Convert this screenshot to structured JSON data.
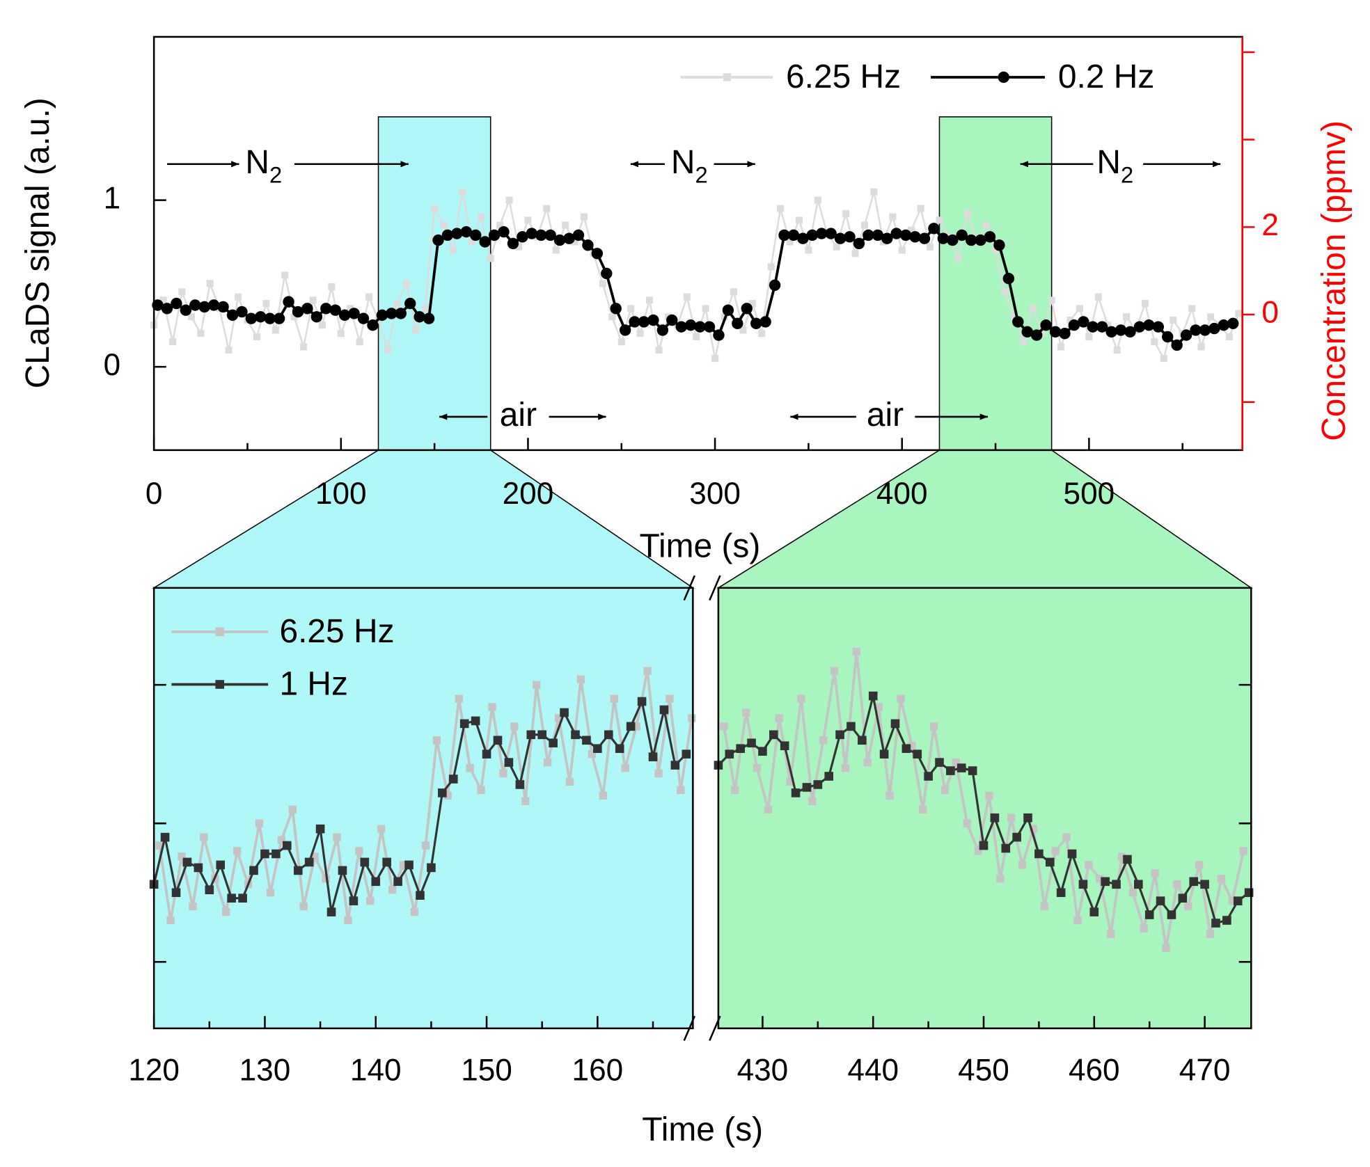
{
  "chart_data": [
    {
      "type": "line",
      "xlabel": "Time (s)",
      "ylabel": "CLaDS signal (a.u.)",
      "y2label": "Concentration (ppmv)",
      "y2color": "#ff0000",
      "xlim": [
        0,
        582
      ],
      "xticks": [
        0,
        100,
        200,
        300,
        400,
        500
      ],
      "xminor_ticks": [
        50,
        150,
        250,
        350,
        450,
        550
      ],
      "ylim": [
        -0.5,
        1.98
      ],
      "yticks": [
        0,
        1
      ],
      "y2lim": [
        -3.1,
        6.35
      ],
      "y2ticks": [
        0,
        2
      ],
      "y2minor_ticks": [
        -2,
        4,
        6
      ],
      "highlights": [
        {
          "xlim": [
            120,
            180
          ],
          "ylim": [
            -0.5,
            1.5
          ],
          "color": "#b0f8f8"
        },
        {
          "xlim": [
            420,
            480
          ],
          "ylim": [
            -0.5,
            1.5
          ],
          "color": "#a8f5bf"
        }
      ],
      "annotations": [
        {
          "text": "N",
          "subscript": "2"
        },
        {
          "text": "N",
          "subscript": "2"
        },
        {
          "text": "N",
          "subscript": "2"
        },
        {
          "text": "air"
        },
        {
          "text": "air"
        }
      ],
      "series": [
        {
          "name": "6.25 Hz",
          "color": "#dcdcdc",
          "marker": "square",
          "x": [
            0,
            5,
            10,
            15,
            20,
            25,
            30,
            35,
            40,
            45,
            50,
            55,
            60,
            65,
            70,
            75,
            80,
            85,
            90,
            95,
            100,
            105,
            110,
            115,
            120,
            125,
            130,
            135,
            140,
            145,
            150,
            155,
            160,
            165,
            170,
            175,
            180,
            185,
            190,
            195,
            200,
            205,
            210,
            215,
            220,
            225,
            230,
            235,
            240,
            245,
            250,
            255,
            260,
            265,
            270,
            275,
            280,
            285,
            290,
            295,
            300,
            305,
            310,
            315,
            320,
            325,
            330,
            335,
            340,
            345,
            350,
            355,
            360,
            365,
            370,
            375,
            380,
            385,
            390,
            395,
            400,
            405,
            410,
            415,
            420,
            425,
            430,
            435,
            440,
            445,
            450,
            455,
            460,
            465,
            470,
            475,
            480,
            485,
            490,
            495,
            500,
            505,
            510,
            515,
            520,
            525,
            530,
            535,
            540,
            545,
            550,
            555,
            560,
            565,
            570,
            575,
            580
          ],
          "values": [
            0.25,
            0.4,
            0.15,
            0.45,
            0.3,
            0.2,
            0.5,
            0.35,
            0.1,
            0.42,
            0.28,
            0.18,
            0.38,
            0.22,
            0.55,
            0.3,
            0.12,
            0.4,
            0.25,
            0.48,
            0.2,
            0.35,
            0.15,
            0.42,
            0.28,
            0.1,
            0.38,
            0.5,
            0.22,
            0.35,
            0.95,
            0.85,
            0.7,
            1.05,
            0.75,
            0.9,
            0.65,
            0.85,
            1.0,
            0.72,
            0.88,
            0.78,
            0.95,
            0.7,
            0.85,
            0.75,
            0.9,
            0.68,
            0.5,
            0.3,
            0.15,
            0.35,
            0.2,
            0.4,
            0.1,
            0.3,
            0.25,
            0.42,
            0.18,
            0.35,
            0.05,
            0.3,
            0.45,
            0.22,
            0.38,
            0.2,
            0.6,
            0.95,
            0.75,
            0.88,
            0.7,
            1.0,
            0.8,
            0.72,
            0.92,
            0.68,
            0.85,
            1.05,
            0.75,
            0.9,
            0.7,
            0.82,
            0.95,
            0.72,
            0.88,
            0.78,
            0.65,
            0.92,
            0.75,
            0.85,
            0.7,
            0.45,
            0.3,
            0.15,
            0.35,
            0.2,
            0.4,
            0.12,
            0.28,
            0.35,
            0.18,
            0.42,
            0.25,
            0.1,
            0.3,
            0.22,
            0.38,
            0.15,
            0.05,
            0.28,
            0.2,
            0.35,
            0.12,
            0.3,
            0.25,
            0.18,
            0.32
          ]
        },
        {
          "name": "0.2 Hz",
          "color": "#000000",
          "marker": "circle",
          "x": [
            2,
            7,
            12,
            17,
            22,
            27,
            32,
            37,
            42,
            47,
            52,
            57,
            62,
            67,
            72,
            77,
            82,
            87,
            92,
            97,
            102,
            107,
            112,
            117,
            122,
            127,
            132,
            137,
            142,
            147,
            152,
            157,
            162,
            167,
            172,
            177,
            182,
            187,
            192,
            197,
            202,
            207,
            212,
            217,
            222,
            227,
            232,
            237,
            242,
            247,
            252,
            257,
            262,
            267,
            272,
            277,
            282,
            287,
            292,
            297,
            302,
            307,
            312,
            317,
            322,
            327,
            332,
            337,
            342,
            347,
            352,
            357,
            362,
            367,
            372,
            377,
            382,
            387,
            392,
            397,
            402,
            407,
            412,
            417,
            422,
            427,
            432,
            437,
            442,
            447,
            452,
            457,
            462,
            467,
            472,
            477,
            482,
            487,
            492,
            497,
            502,
            507,
            512,
            517,
            522,
            527,
            532,
            537,
            542,
            547,
            552,
            557,
            562,
            567,
            572,
            577
          ],
          "values": [
            0.37,
            0.35,
            0.38,
            0.34,
            0.37,
            0.36,
            0.37,
            0.36,
            0.31,
            0.33,
            0.29,
            0.3,
            0.29,
            0.29,
            0.39,
            0.33,
            0.35,
            0.3,
            0.35,
            0.34,
            0.31,
            0.32,
            0.29,
            0.25,
            0.31,
            0.32,
            0.32,
            0.38,
            0.3,
            0.29,
            0.76,
            0.79,
            0.8,
            0.81,
            0.79,
            0.75,
            0.79,
            0.81,
            0.74,
            0.78,
            0.8,
            0.79,
            0.79,
            0.76,
            0.77,
            0.79,
            0.73,
            0.68,
            0.56,
            0.35,
            0.22,
            0.27,
            0.27,
            0.28,
            0.22,
            0.28,
            0.24,
            0.25,
            0.24,
            0.24,
            0.19,
            0.34,
            0.26,
            0.35,
            0.26,
            0.27,
            0.49,
            0.79,
            0.79,
            0.77,
            0.79,
            0.8,
            0.8,
            0.77,
            0.78,
            0.74,
            0.79,
            0.79,
            0.77,
            0.8,
            0.79,
            0.78,
            0.77,
            0.83,
            0.77,
            0.76,
            0.79,
            0.76,
            0.76,
            0.78,
            0.73,
            0.53,
            0.27,
            0.21,
            0.19,
            0.25,
            0.21,
            0.2,
            0.25,
            0.27,
            0.24,
            0.24,
            0.21,
            0.22,
            0.21,
            0.24,
            0.25,
            0.24,
            0.18,
            0.13,
            0.19,
            0.22,
            0.22,
            0.23,
            0.25,
            0.26
          ]
        }
      ]
    },
    {
      "type": "line",
      "xlabel": "Time (s)",
      "xlim": [
        [
          120,
          168.6
        ],
        [
          426,
          474.2
        ]
      ],
      "xticks": [
        120,
        130,
        140,
        150,
        160,
        430,
        440,
        450,
        460,
        470
      ],
      "xminor_ticks": [
        125,
        135,
        145,
        155,
        165,
        435,
        445,
        455,
        465
      ],
      "ylim": [
        -0.24,
        1.35
      ],
      "yminor_ticks": [
        0,
        0.5,
        1
      ],
      "segment_colors": [
        "#b0f8f8",
        "#a8f5bf"
      ],
      "series": [
        {
          "name": "6.25 Hz",
          "color": "#c4c4c4",
          "marker": "square",
          "x": [
            120.5,
            121.5,
            122.5,
            123.5,
            124.5,
            125.5,
            126.5,
            127.5,
            128.5,
            129.5,
            130.5,
            131.5,
            132.5,
            133.5,
            134.5,
            135.5,
            136.5,
            137.5,
            138.5,
            139.5,
            140.5,
            141.5,
            142.5,
            143.5,
            144.5,
            145.5,
            146.5,
            147.5,
            148.5,
            149.5,
            150.5,
            151.5,
            152.5,
            153.5,
            154.5,
            155.5,
            156.5,
            157.5,
            158.5,
            159.5,
            160.5,
            161.5,
            162.5,
            163.5,
            164.5,
            165.5,
            166.5,
            167.5,
            168.5,
            426.5,
            427.5,
            428.5,
            429.5,
            430.5,
            431.5,
            432.5,
            433.5,
            434.5,
            435.5,
            436.5,
            437.5,
            438.5,
            439.5,
            440.5,
            441.5,
            442.5,
            443.5,
            444.5,
            445.5,
            446.5,
            447.5,
            448.5,
            449.5,
            450.5,
            451.5,
            452.5,
            453.5,
            454.5,
            455.5,
            456.5,
            457.5,
            458.5,
            459.5,
            460.5,
            461.5,
            462.5,
            463.5,
            464.5,
            465.5,
            466.5,
            467.5,
            468.5,
            469.5,
            470.5,
            471.5,
            472.5,
            473.5
          ],
          "values": [
            0.42,
            0.15,
            0.38,
            0.2,
            0.45,
            0.3,
            0.18,
            0.4,
            0.28,
            0.5,
            0.25,
            0.44,
            0.55,
            0.2,
            0.38,
            0.3,
            0.45,
            0.15,
            0.4,
            0.22,
            0.48,
            0.26,
            0.35,
            0.18,
            0.42,
            0.8,
            0.6,
            0.95,
            0.7,
            0.62,
            0.92,
            0.68,
            0.85,
            0.58,
            1.0,
            0.72,
            0.88,
            0.65,
            1.02,
            0.75,
            0.6,
            0.95,
            0.7,
            0.85,
            1.05,
            0.68,
            0.95,
            0.62,
            0.88,
            0.85,
            0.62,
            0.9,
            0.7,
            0.55,
            0.88,
            0.65,
            0.95,
            0.58,
            0.8,
            1.05,
            0.7,
            1.12,
            0.72,
            0.92,
            0.6,
            0.95,
            0.78,
            0.55,
            0.85,
            0.62,
            0.72,
            0.5,
            0.4,
            0.6,
            0.3,
            0.52,
            0.35,
            0.48,
            0.2,
            0.4,
            0.45,
            0.15,
            0.35,
            0.3,
            0.1,
            0.38,
            0.25,
            0.12,
            0.32,
            0.05,
            0.28,
            0.2,
            0.35,
            0.1,
            0.3,
            0.22,
            0.4
          ]
        },
        {
          "name": "1 Hz",
          "color": "#333333",
          "marker": "square",
          "x": [
            120,
            121,
            122,
            123,
            124,
            125,
            126,
            127,
            128,
            129,
            130,
            131,
            132,
            133,
            134,
            135,
            136,
            137,
            138,
            139,
            140,
            141,
            142,
            143,
            144,
            145,
            146,
            147,
            148,
            149,
            150,
            151,
            152,
            153,
            154,
            155,
            156,
            157,
            158,
            159,
            160,
            161,
            162,
            163,
            164,
            165,
            166,
            167,
            168,
            426,
            427,
            428,
            429,
            430,
            431,
            432,
            433,
            434,
            435,
            436,
            437,
            438,
            439,
            440,
            441,
            442,
            443,
            444,
            445,
            446,
            447,
            448,
            449,
            450,
            451,
            452,
            453,
            454,
            455,
            456,
            457,
            458,
            459,
            460,
            461,
            462,
            463,
            464,
            465,
            466,
            467,
            468,
            469,
            470,
            471,
            472,
            473,
            474
          ],
          "values": [
            0.28,
            0.45,
            0.25,
            0.36,
            0.34,
            0.26,
            0.35,
            0.23,
            0.23,
            0.33,
            0.39,
            0.39,
            0.42,
            0.33,
            0.36,
            0.48,
            0.18,
            0.33,
            0.22,
            0.36,
            0.29,
            0.36,
            0.29,
            0.35,
            0.24,
            0.34,
            0.61,
            0.66,
            0.86,
            0.87,
            0.75,
            0.8,
            0.72,
            0.64,
            0.82,
            0.82,
            0.79,
            0.9,
            0.82,
            0.8,
            0.77,
            0.82,
            0.77,
            0.85,
            0.94,
            0.74,
            0.91,
            0.71,
            0.75,
            0.71,
            0.75,
            0.77,
            0.79,
            0.76,
            0.82,
            0.78,
            0.61,
            0.63,
            0.64,
            0.67,
            0.82,
            0.85,
            0.8,
            0.96,
            0.75,
            0.86,
            0.77,
            0.75,
            0.67,
            0.72,
            0.69,
            0.7,
            0.69,
            0.42,
            0.52,
            0.41,
            0.45,
            0.52,
            0.39,
            0.36,
            0.25,
            0.39,
            0.28,
            0.18,
            0.29,
            0.28,
            0.37,
            0.28,
            0.17,
            0.22,
            0.17,
            0.23,
            0.29,
            0.28,
            0.14,
            0.15,
            0.22,
            0.25
          ]
        }
      ]
    }
  ]
}
